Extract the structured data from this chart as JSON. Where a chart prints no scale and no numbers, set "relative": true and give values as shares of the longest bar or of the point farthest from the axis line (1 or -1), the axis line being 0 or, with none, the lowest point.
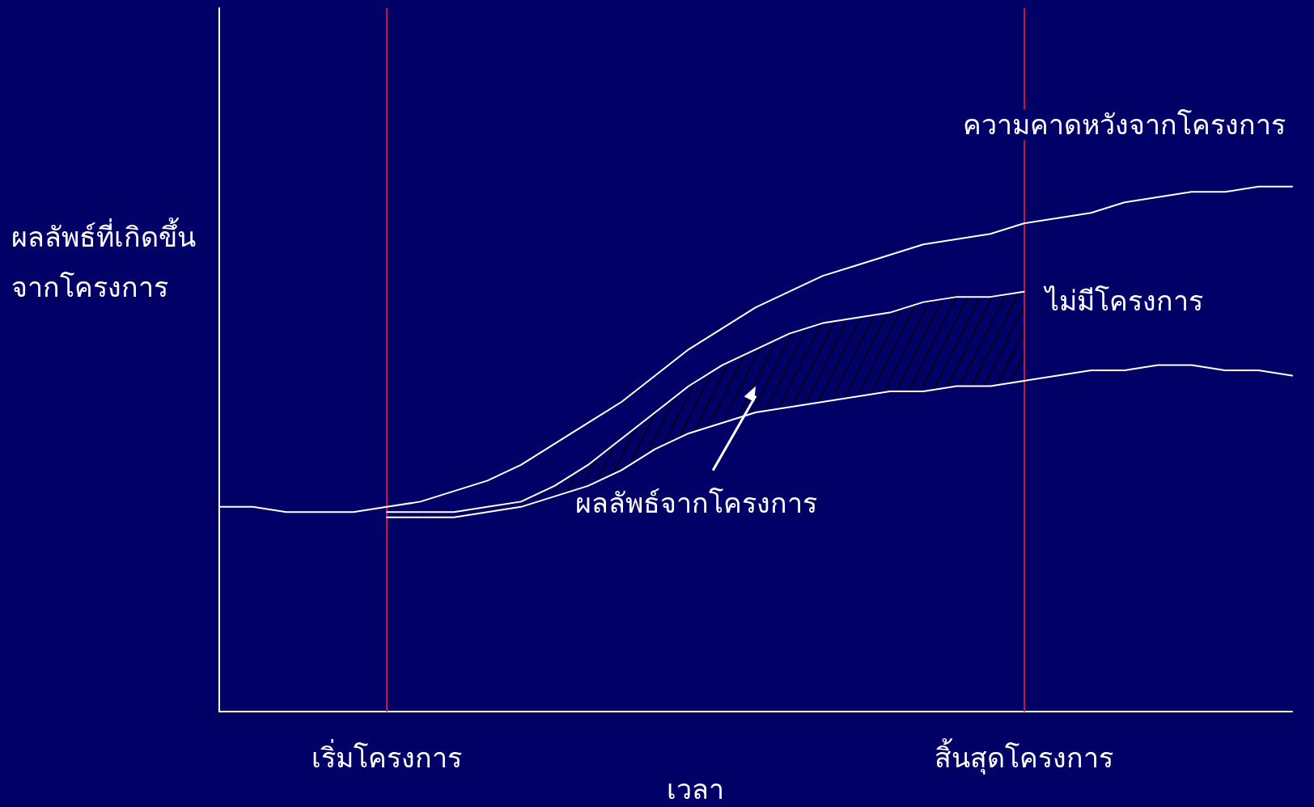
{
  "chart_data": {
    "type": "line",
    "relative": true,
    "xlabel": "เวลา",
    "ylabel": "ผลลัพธ์ที่เกิดขึ้นจากโครงการ",
    "categories": [
      null,
      null,
      null,
      null,
      null,
      "เริ่มโครงการ",
      null,
      null,
      null,
      null,
      null,
      null,
      null,
      null,
      null,
      null,
      null,
      null,
      null,
      null,
      null,
      null,
      null,
      null,
      "สิ้นสุดโครงการ",
      null,
      null,
      null,
      null,
      null,
      null,
      null,
      null
    ],
    "series": [
      {
        "name": "ความคาดหวังจากโครงการ",
        "color": "#ffffff",
        "values": [
          0.39,
          0.39,
          0.38,
          0.38,
          0.38,
          0.39,
          0.4,
          0.42,
          0.44,
          0.47,
          0.51,
          0.55,
          0.59,
          0.64,
          0.69,
          0.73,
          0.77,
          0.8,
          0.83,
          0.85,
          0.87,
          0.89,
          0.9,
          0.91,
          0.93,
          0.94,
          0.95,
          0.97,
          0.98,
          0.99,
          0.99,
          1.0,
          1.0
        ]
      },
      {
        "color": "#ffffff",
        "values": [
          null,
          null,
          null,
          null,
          null,
          0.38,
          0.38,
          0.38,
          0.39,
          0.4,
          0.43,
          0.47,
          0.52,
          0.57,
          0.62,
          0.66,
          0.69,
          0.72,
          0.74,
          0.75,
          0.76,
          0.78,
          0.79,
          0.79,
          0.8,
          null,
          null,
          null,
          null,
          null,
          null,
          null,
          null
        ],
        "lower": [
          null,
          null,
          null,
          null,
          null,
          0.37,
          0.37,
          0.37,
          0.38,
          0.39,
          0.41,
          0.43,
          0.46,
          0.5,
          0.53,
          0.55,
          0.57,
          0.58,
          0.59,
          0.6,
          0.61,
          0.61,
          0.62,
          0.62,
          0.63,
          null,
          null,
          null,
          null,
          null,
          null,
          null,
          null
        ],
        "upper": [
          null,
          null,
          null,
          null,
          null,
          0.38,
          0.38,
          0.38,
          0.39,
          0.4,
          0.43,
          0.47,
          0.52,
          0.57,
          0.62,
          0.66,
          0.69,
          0.72,
          0.74,
          0.75,
          0.76,
          0.78,
          0.79,
          0.79,
          0.8,
          null,
          null,
          null,
          null,
          null,
          null,
          null,
          null
        ]
      },
      {
        "name": "ไม่มีโครงการ",
        "color": "#ffffff",
        "values": [
          null,
          null,
          null,
          null,
          null,
          0.37,
          0.37,
          0.37,
          0.38,
          0.39,
          0.41,
          0.43,
          0.46,
          0.5,
          0.53,
          0.55,
          0.57,
          0.58,
          0.59,
          0.6,
          0.61,
          0.61,
          0.62,
          0.62,
          0.63,
          0.64,
          0.65,
          0.65,
          0.66,
          0.66,
          0.65,
          0.65,
          0.64
        ]
      }
    ],
    "ref_lines": [
      {
        "axis": "x",
        "value": "เริ่มโครงการ",
        "color": "#cc1144"
      },
      {
        "axis": "x",
        "value": "สิ้นสุดโครงการ",
        "color": "#cc1144"
      }
    ],
    "annotations": [
      "ผลลัพธ์จากโครงการ"
    ],
    "legend": false,
    "grid": false,
    "marker": "none",
    "line_style": "solid"
  }
}
